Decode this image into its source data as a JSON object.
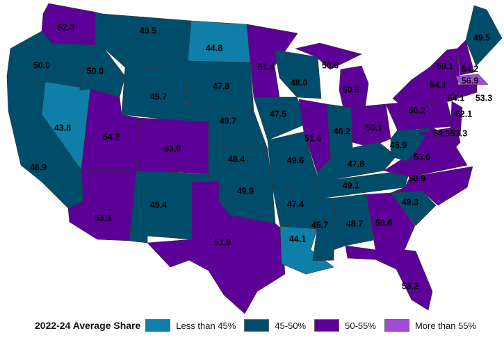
{
  "legend": {
    "title": "2022-24 Average Share",
    "items": [
      {
        "label": "Less than 45%",
        "color": "#0e7fa8"
      },
      {
        "label": "45-50%",
        "color": "#004d6b"
      },
      {
        "label": "50-55%",
        "color": "#5c0098"
      },
      {
        "label": "More than 55%",
        "color": "#a24bd6"
      }
    ]
  },
  "states": [
    {
      "abbr": "WA",
      "value": "52.3",
      "cat": 2
    },
    {
      "abbr": "OR",
      "value": "50.0",
      "cat": 1
    },
    {
      "abbr": "CA",
      "value": "48.9",
      "cat": 1
    },
    {
      "abbr": "NV",
      "value": "43.8",
      "cat": 0
    },
    {
      "abbr": "ID",
      "value": "50.0",
      "cat": 1
    },
    {
      "abbr": "MT",
      "value": "49.5",
      "cat": 1
    },
    {
      "abbr": "WY",
      "value": "45.7",
      "cat": 1
    },
    {
      "abbr": "UT",
      "value": "54.2",
      "cat": 2
    },
    {
      "abbr": "AZ",
      "value": "53.3",
      "cat": 2
    },
    {
      "abbr": "CO",
      "value": "53.9",
      "cat": 2
    },
    {
      "abbr": "NM",
      "value": "49.4",
      "cat": 1
    },
    {
      "abbr": "ND",
      "value": "44.8",
      "cat": 0
    },
    {
      "abbr": "SD",
      "value": "47.8",
      "cat": 1
    },
    {
      "abbr": "NE",
      "value": "49.7",
      "cat": 1
    },
    {
      "abbr": "KS",
      "value": "48.4",
      "cat": 1
    },
    {
      "abbr": "OK",
      "value": "49.9",
      "cat": 1
    },
    {
      "abbr": "TX",
      "value": "51.9",
      "cat": 2
    },
    {
      "abbr": "MN",
      "value": "51.4",
      "cat": 2
    },
    {
      "abbr": "IA",
      "value": "47.5",
      "cat": 1
    },
    {
      "abbr": "MO",
      "value": "49.6",
      "cat": 1
    },
    {
      "abbr": "AR",
      "value": "47.4",
      "cat": 1
    },
    {
      "abbr": "LA",
      "value": "44.1",
      "cat": 0
    },
    {
      "abbr": "WI",
      "value": "48.0",
      "cat": 1
    },
    {
      "abbr": "IL",
      "value": "51.6",
      "cat": 2
    },
    {
      "abbr": "MI",
      "value": "50.6",
      "cat": 2
    },
    {
      "abbr": "IN",
      "value": "46.2",
      "cat": 1
    },
    {
      "abbr": "OH",
      "value": "50.1",
      "cat": 2
    },
    {
      "abbr": "KY",
      "value": "47.8",
      "cat": 1
    },
    {
      "abbr": "TN",
      "value": "49.1",
      "cat": 1
    },
    {
      "abbr": "MS",
      "value": "45.7",
      "cat": 1
    },
    {
      "abbr": "AL",
      "value": "48.7",
      "cat": 1
    },
    {
      "abbr": "GA",
      "value": "50.6",
      "cat": 2
    },
    {
      "abbr": "FL",
      "value": "53.2",
      "cat": 2
    },
    {
      "abbr": "SC",
      "value": "49.3",
      "cat": 1
    },
    {
      "abbr": "NC",
      "value": "50.9",
      "cat": 2
    },
    {
      "abbr": "VA",
      "value": "53.6",
      "cat": 2
    },
    {
      "abbr": "WV",
      "value": "46.9",
      "cat": 1
    },
    {
      "abbr": "PA",
      "value": "50.2",
      "cat": 2
    },
    {
      "abbr": "NY",
      "value": "54.1",
      "cat": 2
    },
    {
      "abbr": "VT",
      "value": "50.1",
      "cat": 2
    },
    {
      "abbr": "NH",
      "value": "54.2",
      "cat": 2
    },
    {
      "abbr": "ME",
      "value": "49.5",
      "cat": 1
    },
    {
      "abbr": "MA",
      "value": "56.9",
      "cat": 3
    },
    {
      "abbr": "CT",
      "value": "54.1",
      "cat": 2
    },
    {
      "abbr": "RI",
      "value": "53.3",
      "cat": 2
    },
    {
      "abbr": "NJ",
      "value": "52.1",
      "cat": 2
    },
    {
      "abbr": "MD",
      "value": "54.3",
      "cat": 2
    },
    {
      "abbr": "DE",
      "value": "53.3",
      "cat": 2
    }
  ]
}
